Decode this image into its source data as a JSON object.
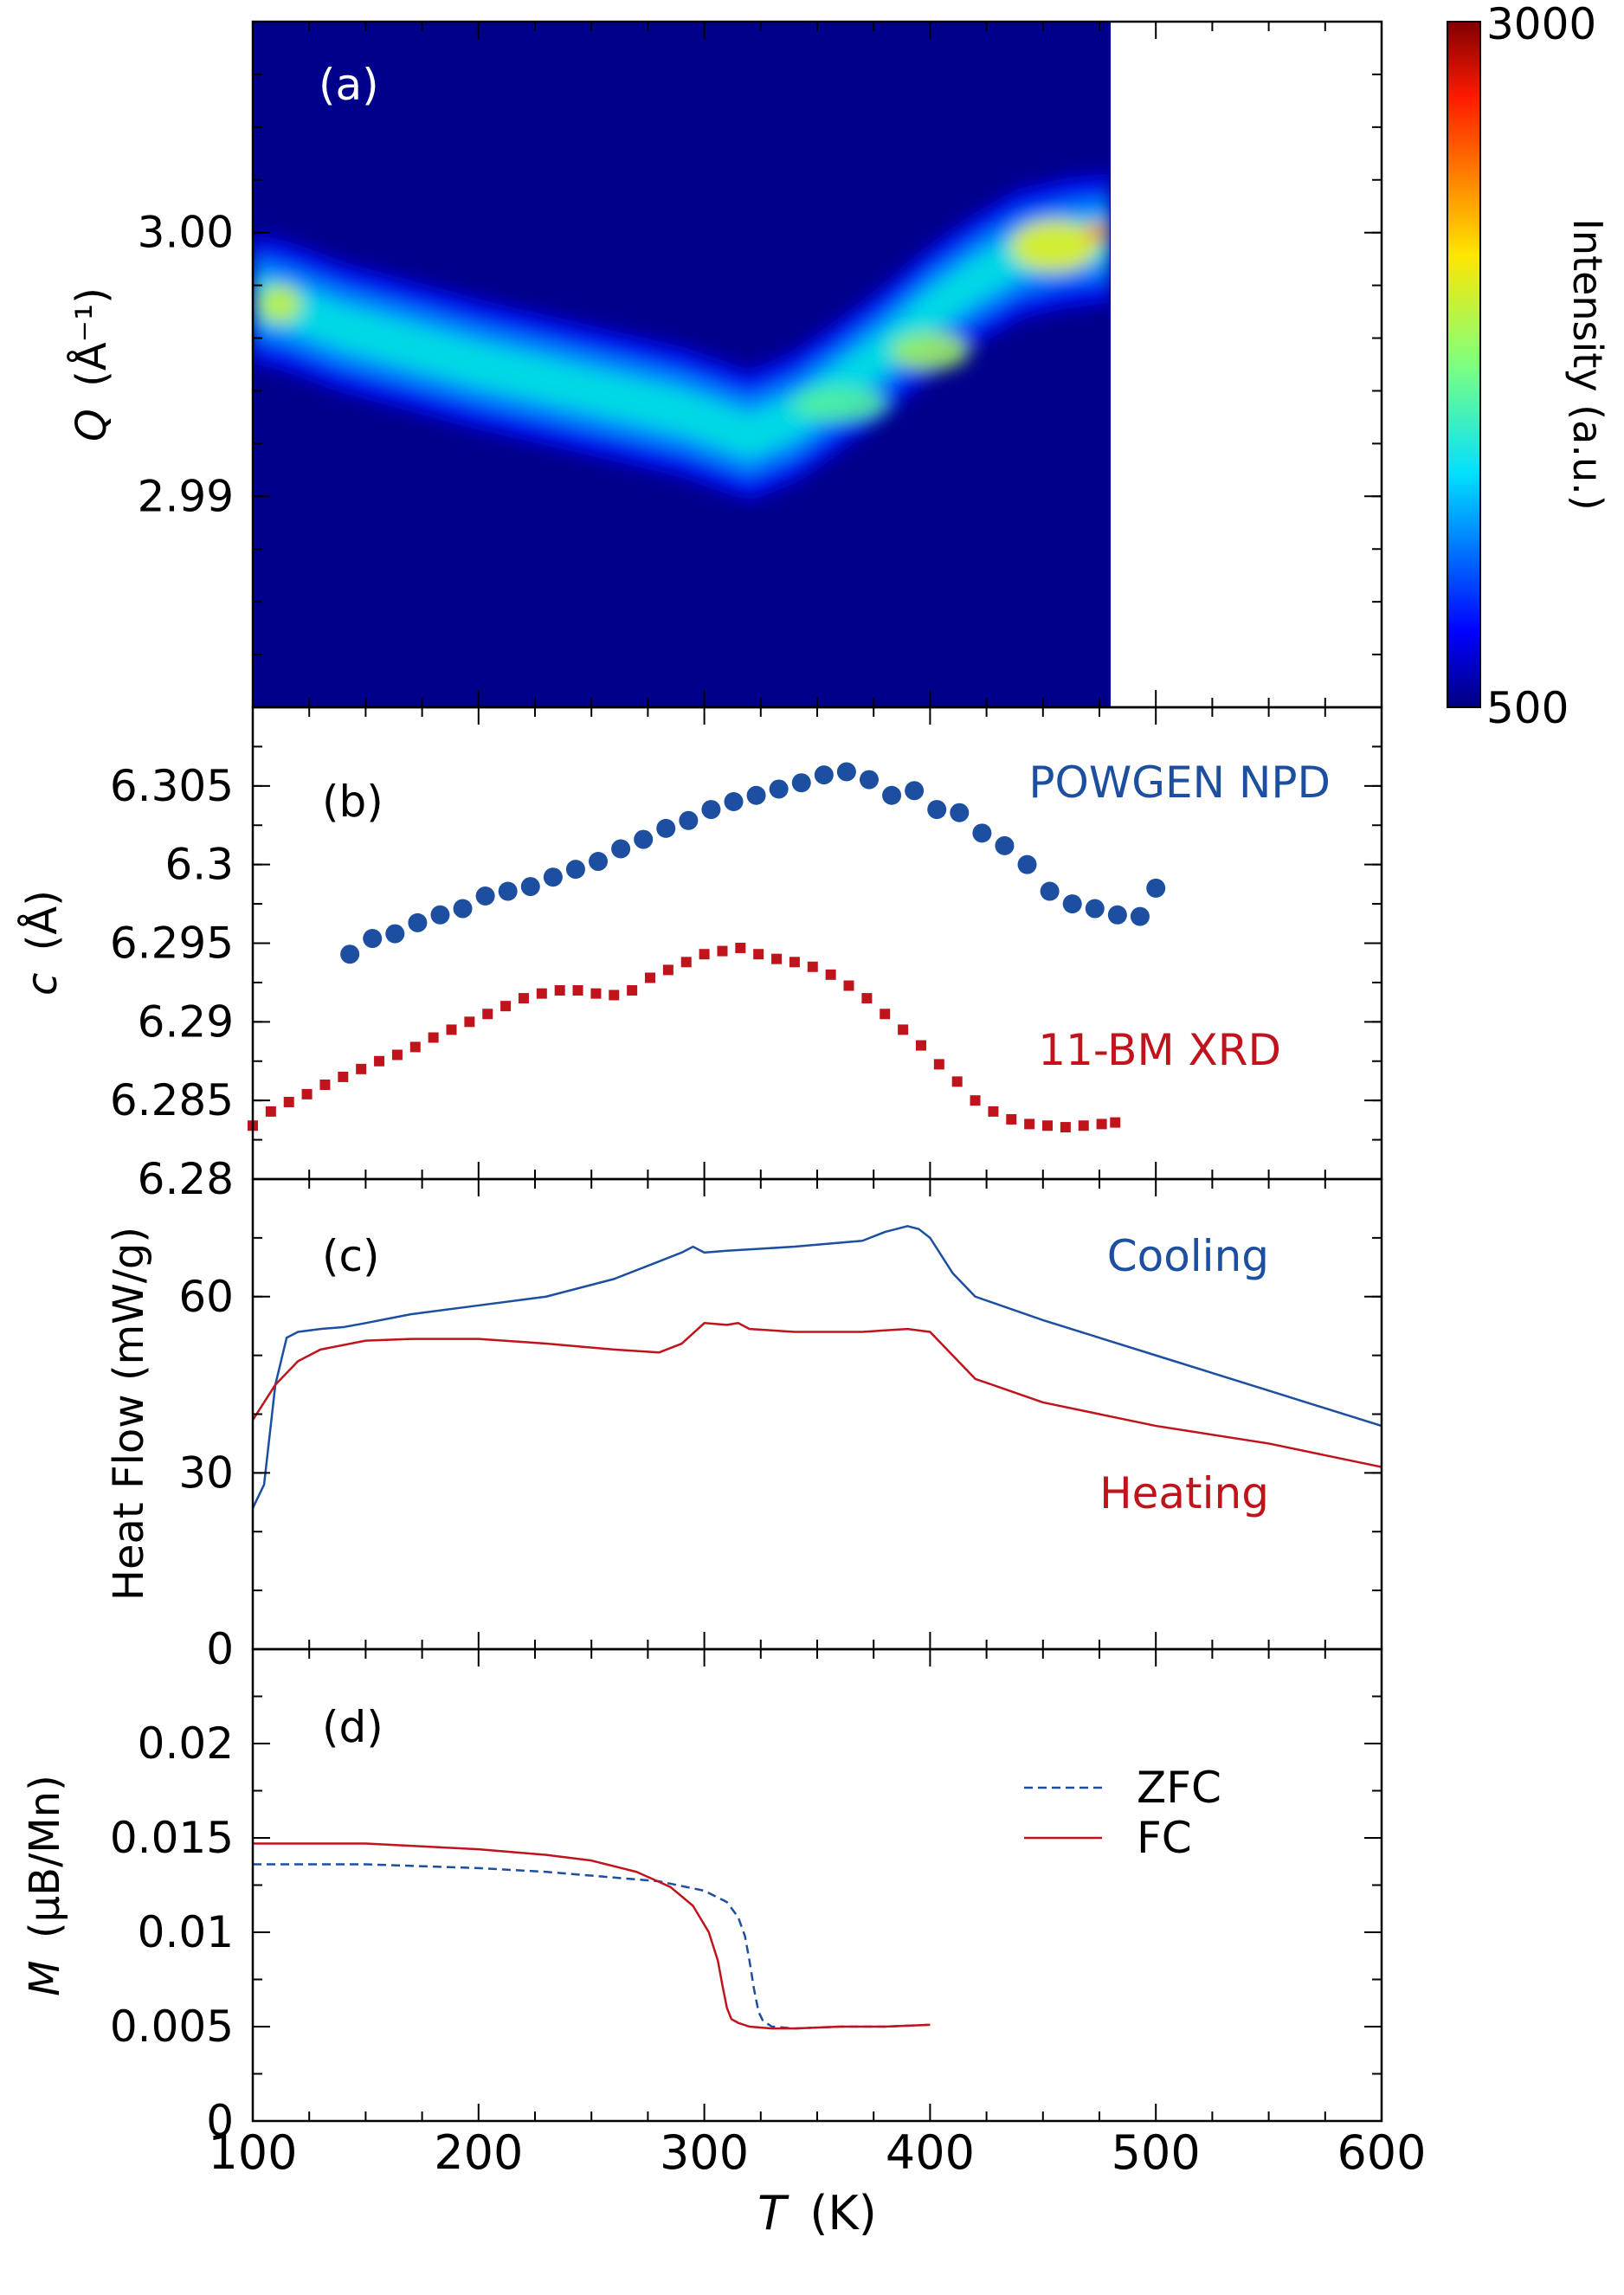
{
  "chart_data": [
    {
      "panel": "a",
      "type": "heatmap",
      "panel_label": "(a)",
      "ylabel_italic": "Q",
      "ylabel_unit": "(Å⁻¹)",
      "yticks": [
        {
          "v": 3.0,
          "label": "3.00"
        },
        {
          "v": 2.99,
          "label": "2.99"
        }
      ],
      "ylim": [
        2.982,
        3.008
      ],
      "xlim": [
        100,
        600
      ],
      "data_x_range": [
        100,
        480
      ],
      "ridge": {
        "T": [
          100,
          115,
          140,
          170,
          200,
          230,
          260,
          290,
          310,
          320,
          340,
          360,
          380,
          400,
          420,
          440,
          460,
          480
        ],
        "Q": [
          2.9975,
          2.9972,
          2.9964,
          2.9957,
          2.995,
          2.9944,
          2.9938,
          2.9932,
          2.9926,
          2.9923,
          2.993,
          2.9942,
          2.9955,
          2.997,
          2.9982,
          2.9992,
          2.9996,
          2.9998
        ]
      },
      "colorbar": {
        "label": "Intensity (a.u.)",
        "min": 500,
        "max": 3000,
        "min_label": "500",
        "max_label": "3000"
      }
    },
    {
      "panel": "b",
      "type": "scatter",
      "panel_label": "(b)",
      "ylabel_italic": "c",
      "ylabel_unit": "(Å)",
      "ylim": [
        6.28,
        6.31
      ],
      "yticks": [
        {
          "v": 6.28,
          "label": "6.28"
        },
        {
          "v": 6.285,
          "label": "6.285"
        },
        {
          "v": 6.29,
          "label": "6.29"
        },
        {
          "v": 6.295,
          "label": "6.295"
        },
        {
          "v": 6.3,
          "label": "6.3"
        },
        {
          "v": 6.305,
          "label": "6.305"
        }
      ],
      "xlim": [
        100,
        600
      ],
      "series": [
        {
          "name": "POWGEN NPD",
          "color": "#1d4fa0",
          "marker": "circle",
          "x": [
            143,
            153,
            163,
            173,
            183,
            193,
            203,
            213,
            223,
            233,
            243,
            253,
            263,
            273,
            283,
            293,
            303,
            313,
            323,
            333,
            343,
            353,
            363,
            373,
            383,
            393,
            403,
            413,
            423,
            433,
            443,
            453,
            463,
            473,
            483,
            493,
            500
          ],
          "y": [
            6.2943,
            6.2953,
            6.2956,
            6.2963,
            6.2968,
            6.2972,
            6.298,
            6.2983,
            6.2986,
            6.2992,
            6.2997,
            6.3002,
            6.301,
            6.3016,
            6.3023,
            6.3028,
            6.3035,
            6.304,
            6.3044,
            6.3048,
            6.3052,
            6.3057,
            6.3059,
            6.3054,
            6.3044,
            6.3047,
            6.3035,
            6.3033,
            6.302,
            6.3012,
            6.3,
            6.2983,
            6.2975,
            6.2972,
            6.2968,
            6.2967,
            6.2985
          ]
        },
        {
          "name": "11-BM XRD",
          "color": "#c0141c",
          "marker": "square",
          "x": [
            100,
            108,
            116,
            124,
            132,
            140,
            148,
            156,
            164,
            172,
            180,
            188,
            196,
            204,
            212,
            220,
            228,
            236,
            244,
            252,
            260,
            268,
            276,
            284,
            292,
            300,
            308,
            316,
            324,
            332,
            340,
            348,
            356,
            364,
            372,
            380,
            388,
            396,
            404,
            412,
            420,
            428,
            436,
            444,
            452,
            460,
            468,
            476,
            482
          ],
          "y": [
            6.2834,
            6.2843,
            6.2849,
            6.2854,
            6.286,
            6.2865,
            6.287,
            6.2875,
            6.2879,
            6.2884,
            6.289,
            6.2895,
            6.29,
            6.2905,
            6.291,
            6.2915,
            6.2918,
            6.292,
            6.292,
            6.2918,
            6.2917,
            6.292,
            6.2928,
            6.2933,
            6.2938,
            6.2943,
            6.2945,
            6.2947,
            6.2943,
            6.294,
            6.2938,
            6.2935,
            6.293,
            6.2923,
            6.2915,
            6.2905,
            6.2895,
            6.2885,
            6.2873,
            6.2862,
            6.285,
            6.2843,
            6.2838,
            6.2835,
            6.2834,
            6.2833,
            6.2834,
            6.2835,
            6.2836
          ]
        }
      ]
    },
    {
      "panel": "c",
      "type": "line",
      "panel_label": "(c)",
      "ylabel": "Heat Flow (mW/g)",
      "ylim": [
        0,
        80
      ],
      "yticks": [
        {
          "v": 0,
          "label": "0"
        },
        {
          "v": 30,
          "label": "30"
        },
        {
          "v": 60,
          "label": "60"
        }
      ],
      "xlim": [
        100,
        600
      ],
      "series": [
        {
          "name": "Cooling",
          "color": "#1d4fa0",
          "style": "solid",
          "x": [
            100,
            105,
            110,
            115,
            120,
            130,
            140,
            150,
            170,
            200,
            230,
            260,
            280,
            290,
            295,
            300,
            310,
            340,
            370,
            380,
            390,
            395,
            400,
            410,
            420,
            450,
            500,
            550,
            600
          ],
          "y": [
            24,
            28,
            45,
            53,
            54,
            54.5,
            54.8,
            55.5,
            57,
            58.5,
            60,
            63,
            66,
            67.5,
            68.5,
            67.5,
            67.8,
            68.5,
            69.5,
            71,
            72,
            71.5,
            70,
            64,
            60,
            56,
            50,
            44,
            38
          ]
        },
        {
          "name": "Heating",
          "color": "#c0141c",
          "style": "solid",
          "x": [
            100,
            110,
            120,
            130,
            150,
            170,
            200,
            230,
            260,
            280,
            290,
            300,
            310,
            315,
            320,
            340,
            370,
            390,
            400,
            410,
            420,
            450,
            500,
            550,
            600
          ],
          "y": [
            39,
            45,
            49,
            51,
            52.5,
            52.8,
            52.8,
            52,
            51,
            50.5,
            52,
            55.5,
            55.2,
            55.5,
            54.5,
            54,
            54,
            54.5,
            54,
            50,
            46,
            42,
            38,
            35,
            31
          ]
        }
      ]
    },
    {
      "panel": "d",
      "type": "line",
      "panel_label": "(d)",
      "ylabel_italic": "M",
      "ylabel_unit": "(μB/Mn)",
      "ylim": [
        0,
        0.025
      ],
      "yticks": [
        {
          "v": 0,
          "label": "0"
        },
        {
          "v": 0.005,
          "label": "0.005"
        },
        {
          "v": 0.01,
          "label": "0.01"
        },
        {
          "v": 0.015,
          "label": "0.015"
        },
        {
          "v": 0.02,
          "label": "0.02"
        }
      ],
      "xlim": [
        100,
        600
      ],
      "xticks": [
        {
          "v": 100,
          "label": "100"
        },
        {
          "v": 200,
          "label": "200"
        },
        {
          "v": 300,
          "label": "300"
        },
        {
          "v": 400,
          "label": "400"
        },
        {
          "v": 500,
          "label": "500"
        },
        {
          "v": 600,
          "label": "600"
        }
      ],
      "xlabel_italic": "T",
      "xlabel_unit": "(K)",
      "legend_position": "top-right",
      "series": [
        {
          "name": "ZFC",
          "color": "#1d4fa0",
          "style": "dashed",
          "x": [
            100,
            150,
            200,
            230,
            260,
            280,
            300,
            310,
            315,
            318,
            320,
            322,
            324,
            326,
            330,
            340,
            360,
            380,
            400
          ],
          "y": [
            0.0136,
            0.0136,
            0.0134,
            0.0132,
            0.0129,
            0.0127,
            0.0122,
            0.0116,
            0.0108,
            0.0098,
            0.0085,
            0.007,
            0.0058,
            0.0053,
            0.005,
            0.0049,
            0.005,
            0.005,
            0.0051
          ]
        },
        {
          "name": "FC",
          "color": "#c0141c",
          "style": "solid",
          "x": [
            100,
            150,
            200,
            230,
            250,
            270,
            285,
            295,
            302,
            306,
            308,
            310,
            312,
            315,
            320,
            330,
            340,
            360,
            380,
            400
          ],
          "y": [
            0.0147,
            0.0147,
            0.0144,
            0.0141,
            0.0138,
            0.0132,
            0.0124,
            0.0114,
            0.01,
            0.0085,
            0.0072,
            0.006,
            0.0054,
            0.0052,
            0.005,
            0.0049,
            0.0049,
            0.005,
            0.005,
            0.0051
          ]
        }
      ]
    }
  ]
}
